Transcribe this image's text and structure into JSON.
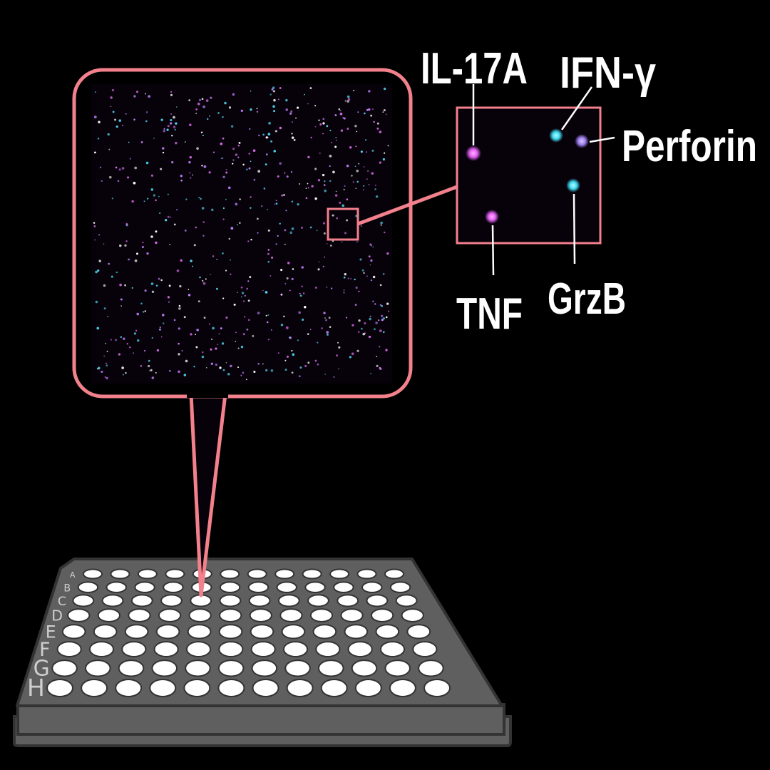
{
  "colors": {
    "background": "#000000",
    "callout_outline": "#f2818c",
    "image_background": "#07010a",
    "plate_body": "#5f5f5f",
    "plate_outline": "#333333",
    "well": "#ffffff",
    "magenta_spot": "#e060f0",
    "cyan_spot": "#40d8f0",
    "violet_spot": "#a080f0"
  },
  "plate": {
    "row_labels": [
      "A",
      "B",
      "C",
      "D",
      "E",
      "F",
      "G",
      "H"
    ],
    "columns": 12,
    "selected_well": "C5"
  },
  "markers": [
    {
      "label": "IL-17A",
      "color": "magenta"
    },
    {
      "label": "IFN-γ",
      "color": "cyan"
    },
    {
      "label": "Perforin",
      "color": "violet"
    },
    {
      "label": "GrzB",
      "color": "cyan"
    },
    {
      "label": "TNF",
      "color": "magenta"
    }
  ]
}
